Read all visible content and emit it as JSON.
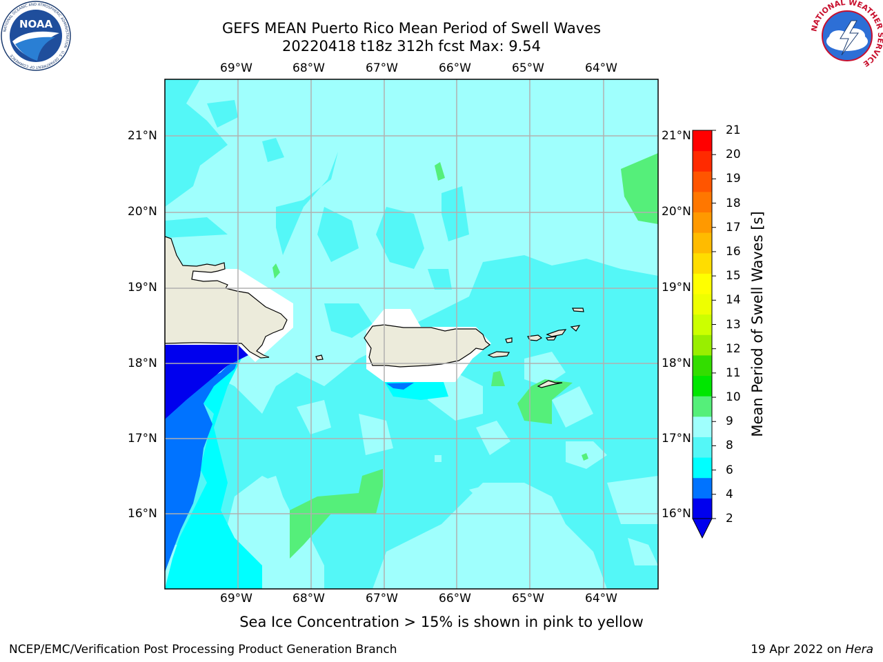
{
  "title_line1": "GEFS MEAN Puerto Rico Mean Period of Swell Waves",
  "title_line2": "20220418 t18z 312h fcst   Max: 9.54",
  "lon_labels": [
    "69°W",
    "68°W",
    "67°W",
    "66°W",
    "65°W",
    "64°W"
  ],
  "lat_labels": [
    "21°N",
    "20°N",
    "19°N",
    "18°N",
    "17°N",
    "16°N"
  ],
  "colorbar": {
    "title": "Mean Period of Swell Waves [s]",
    "ticks": [
      "21",
      "20",
      "19",
      "18",
      "17",
      "16",
      "15",
      "14",
      "13",
      "12",
      "11",
      "10",
      "9",
      "8",
      "6",
      "4",
      "2"
    ],
    "colors": [
      "#0000ee",
      "#0073ff",
      "#00ffff",
      "#54f7f7",
      "#9ffffd",
      "#55ef7a",
      "#00e600",
      "#33dd00",
      "#99ee00",
      "#ccff00",
      "#eeff00",
      "#ffff00",
      "#ffdd00",
      "#ffbb00",
      "#ff9900",
      "#ff7700",
      "#ff5500",
      "#ff2a00",
      "#ff0000"
    ]
  },
  "note": "Sea Ice Concentration > 15% is shown in pink to yellow",
  "credit": "NCEP/EMC/Verification Post Processing Product Generation Branch",
  "date_prefix": "19 Apr 2022 on ",
  "date_host": "Hera",
  "logos": {
    "noaa_text": "NOAA",
    "noaa_ring": "NATIONAL OCEANIC AND ATMOSPHERIC ADMINISTRATION",
    "noaa_ring_bottom": "U.S. DEPARTMENT OF COMMERCE",
    "nws_ring": "NATIONAL WEATHER SERVICE"
  },
  "colors": {
    "land": "#ecebdb",
    "ocean_base": "#9ffffd"
  }
}
